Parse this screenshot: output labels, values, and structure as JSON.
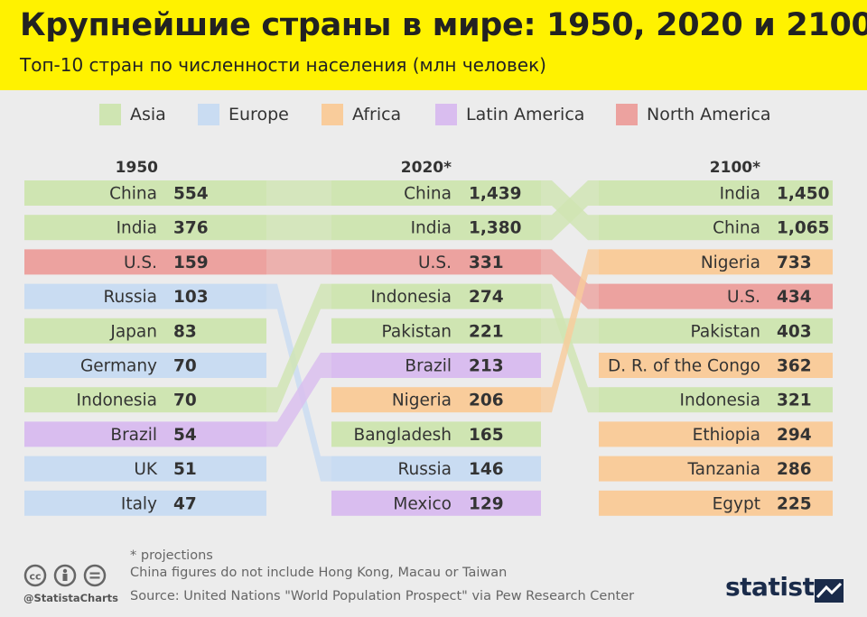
{
  "header": {
    "title": "Крупнейшие страны в мире: 1950, 2020 и 2100",
    "subtitle": "Топ-10 стран по численности населения (млн человек)"
  },
  "legend": [
    {
      "label": "Asia",
      "color": "#cfe5b2"
    },
    {
      "label": "Europe",
      "color": "#c9dcf2"
    },
    {
      "label": "Africa",
      "color": "#f9cc9b"
    },
    {
      "label": "Latin America",
      "color": "#d9bdef"
    },
    {
      "label": "North America",
      "color": "#eca29f"
    }
  ],
  "chart_data": {
    "type": "bump",
    "columns": [
      {
        "header": "1950",
        "rows": [
          {
            "country": "China",
            "value": "554",
            "region": "Asia"
          },
          {
            "country": "India",
            "value": "376",
            "region": "Asia"
          },
          {
            "country": "U.S.",
            "value": "159",
            "region": "North America"
          },
          {
            "country": "Russia",
            "value": "103",
            "region": "Europe"
          },
          {
            "country": "Japan",
            "value": "83",
            "region": "Asia"
          },
          {
            "country": "Germany",
            "value": "70",
            "region": "Europe"
          },
          {
            "country": "Indonesia",
            "value": "70",
            "region": "Asia"
          },
          {
            "country": "Brazil",
            "value": "54",
            "region": "Latin America"
          },
          {
            "country": "UK",
            "value": "51",
            "region": "Europe"
          },
          {
            "country": "Italy",
            "value": "47",
            "region": "Europe"
          }
        ]
      },
      {
        "header": "2020*",
        "rows": [
          {
            "country": "China",
            "value": "1,439",
            "region": "Asia"
          },
          {
            "country": "India",
            "value": "1,380",
            "region": "Asia"
          },
          {
            "country": "U.S.",
            "value": "331",
            "region": "North America"
          },
          {
            "country": "Indonesia",
            "value": "274",
            "region": "Asia"
          },
          {
            "country": "Pakistan",
            "value": "221",
            "region": "Asia"
          },
          {
            "country": "Brazil",
            "value": "213",
            "region": "Latin America"
          },
          {
            "country": "Nigeria",
            "value": "206",
            "region": "Africa"
          },
          {
            "country": "Bangladesh",
            "value": "165",
            "region": "Asia"
          },
          {
            "country": "Russia",
            "value": "146",
            "region": "Europe"
          },
          {
            "country": "Mexico",
            "value": "129",
            "region": "Latin America"
          }
        ]
      },
      {
        "header": "2100*",
        "rows": [
          {
            "country": "India",
            "value": "1,450",
            "region": "Asia"
          },
          {
            "country": "China",
            "value": "1,065",
            "region": "Asia"
          },
          {
            "country": "Nigeria",
            "value": "733",
            "region": "Africa"
          },
          {
            "country": "U.S.",
            "value": "434",
            "region": "North America"
          },
          {
            "country": "Pakistan",
            "value": "403",
            "region": "Asia"
          },
          {
            "country": "D. R. of the Congo",
            "value": "362",
            "region": "Africa"
          },
          {
            "country": "Indonesia",
            "value": "321",
            "region": "Asia"
          },
          {
            "country": "Ethiopia",
            "value": "294",
            "region": "Africa"
          },
          {
            "country": "Tanzania",
            "value": "286",
            "region": "Africa"
          },
          {
            "country": "Egypt",
            "value": "225",
            "region": "Africa"
          }
        ]
      }
    ]
  },
  "footer": {
    "note": "* projections",
    "note2": "China figures do not include Hong Kong, Macau or Taiwan",
    "source": "Source: United Nations \"World Population Prospect\" via Pew Research Center",
    "handle": "@StatistaCharts",
    "brand": "statista"
  }
}
